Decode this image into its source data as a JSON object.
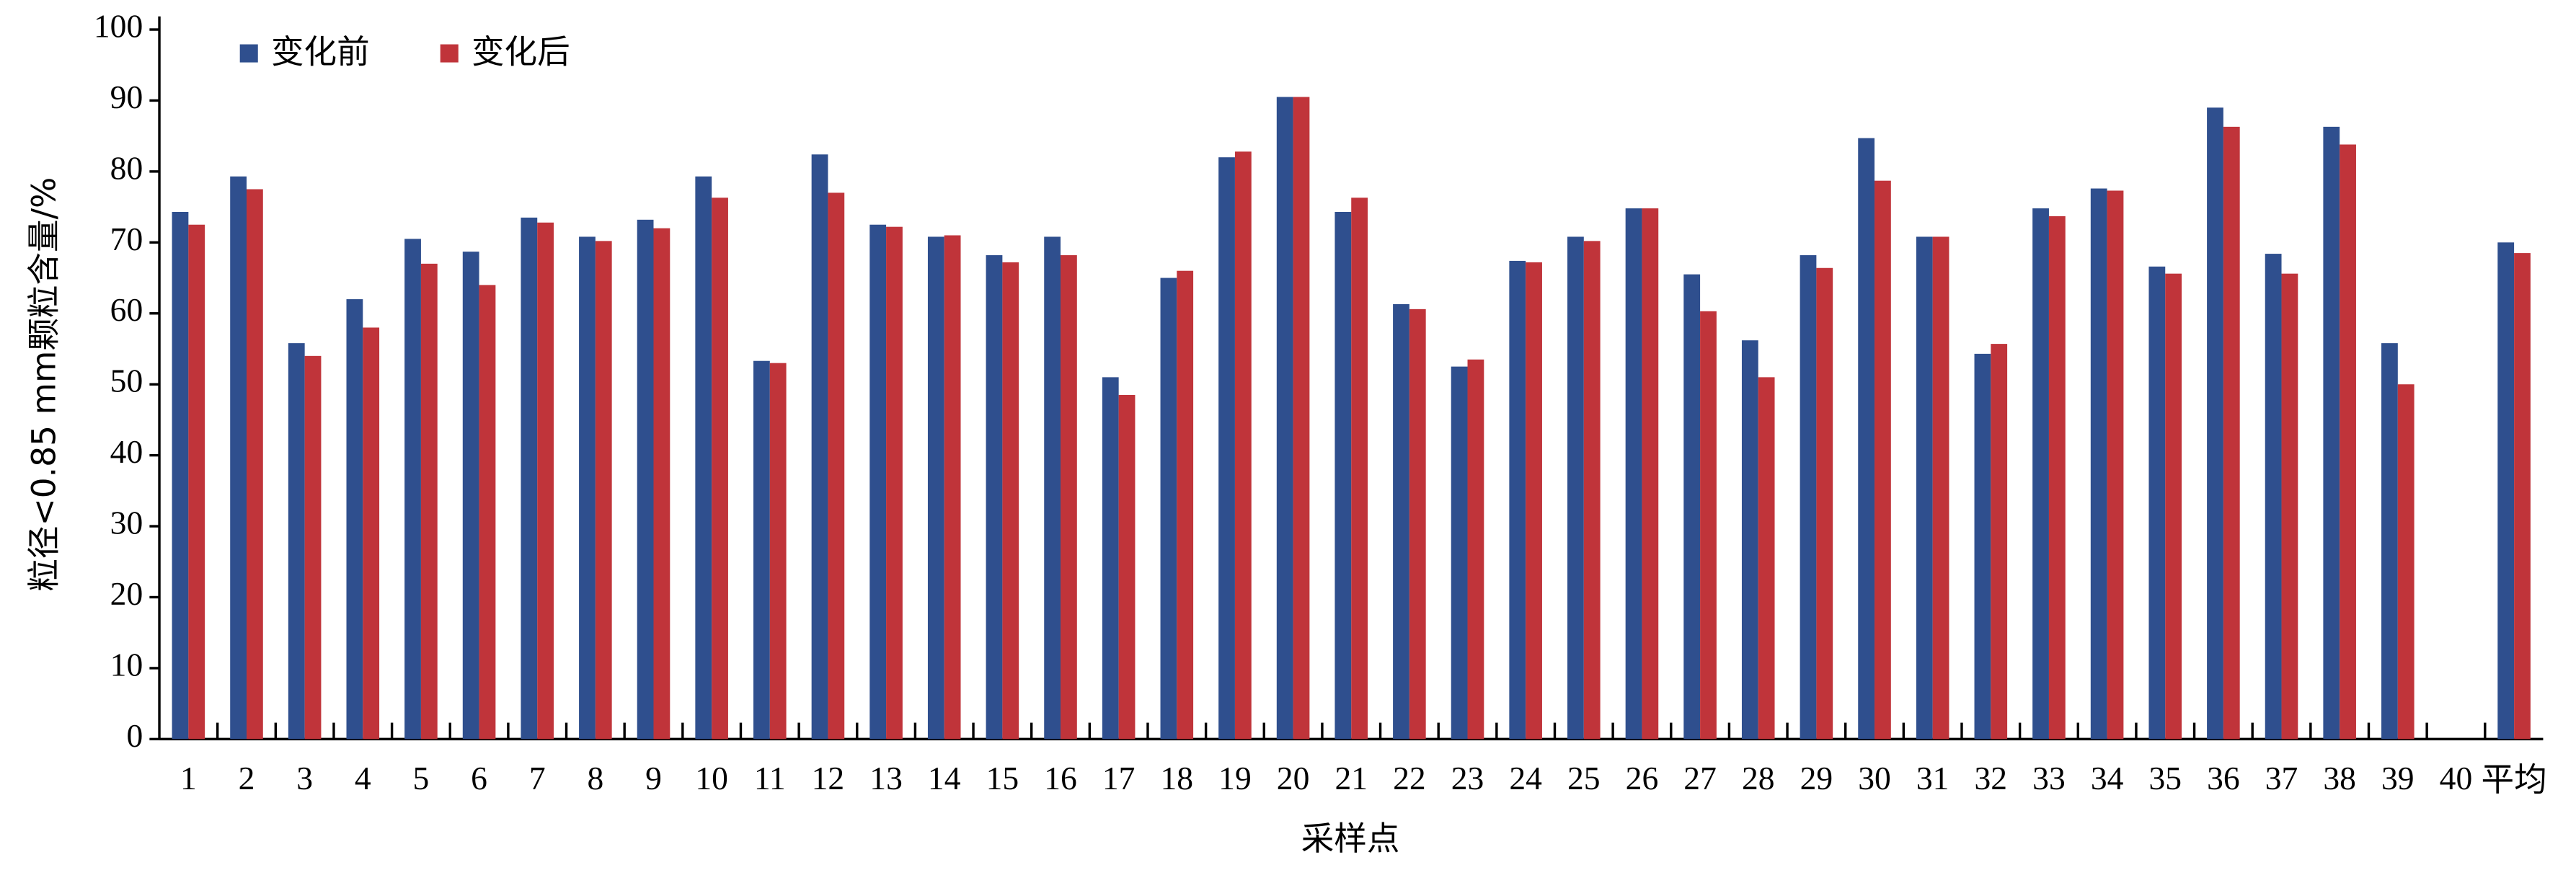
{
  "chart_data": {
    "type": "bar",
    "y_label": "粒径<0.85 mm颗粒含量/%",
    "x_label": "采样点",
    "categories": [
      "1",
      "2",
      "3",
      "4",
      "5",
      "6",
      "7",
      "8",
      "9",
      "10",
      "11",
      "12",
      "13",
      "14",
      "15",
      "16",
      "17",
      "18",
      "19",
      "20",
      "21",
      "22",
      "23",
      "24",
      "25",
      "26",
      "27",
      "28",
      "29",
      "30",
      "31",
      "32",
      "33",
      "34",
      "35",
      "36",
      "37",
      "38",
      "39",
      "40",
      "平均"
    ],
    "series": [
      {
        "name": "变化前",
        "color": "#2f4f8e",
        "values": [
          74.3,
          79.3,
          55.8,
          62,
          70.5,
          68.7,
          73.5,
          70.8,
          73.2,
          79.3,
          53.3,
          82.4,
          72.5,
          70.8,
          68.2,
          70.8,
          51,
          65,
          82,
          90.5,
          74.3,
          61.3,
          52.5,
          67.4,
          70.8,
          74.8,
          65.5,
          56.2,
          68.2,
          84.7,
          70.8,
          54.3,
          74.8,
          77.6,
          66.6,
          89,
          68.4,
          86.3,
          55.8,
          null,
          70
        ]
      },
      {
        "name": "变化后",
        "color": "#c0343a",
        "values": [
          72.5,
          77.5,
          54,
          58,
          67,
          64,
          72.8,
          70.2,
          72,
          76.3,
          53,
          77,
          72.2,
          71,
          67.2,
          68.2,
          48.5,
          66,
          82.8,
          90.5,
          76.3,
          60.6,
          53.5,
          67.2,
          70.2,
          74.8,
          60.3,
          51,
          66.4,
          78.7,
          70.8,
          55.7,
          73.7,
          77.3,
          65.6,
          86.3,
          65.6,
          83.8,
          50,
          null,
          68.5
        ]
      }
    ],
    "ylim": [
      0,
      100
    ],
    "yticks": [
      0,
      10,
      20,
      30,
      40,
      50,
      60,
      70,
      80,
      90,
      100
    ],
    "legend": "upper left"
  }
}
